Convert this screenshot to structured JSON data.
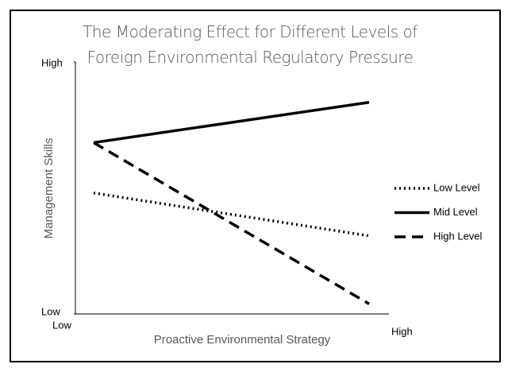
{
  "chart_data": {
    "type": "line",
    "title": "The Moderating Effect for Different Levels of Foreign Environmental Regulatory Pressure",
    "x_label": "Proactive Environmental Strategy",
    "y_label": "Management Skills",
    "categories": [
      "Low",
      "High"
    ],
    "ylim": [
      0,
      10
    ],
    "yticks": [
      {
        "value": 0,
        "label": "Low"
      },
      {
        "value": 10,
        "label": "High"
      }
    ],
    "grid": false,
    "legend": "right",
    "series": [
      {
        "name": "Low Level",
        "color": "#000000",
        "style": "dotted",
        "values": [
          4.8,
          3.1
        ]
      },
      {
        "name": "Mid Level",
        "color": "#000000",
        "style": "solid",
        "values": [
          6.8,
          8.4
        ]
      },
      {
        "name": "High Level",
        "color": "#000000",
        "style": "dashed",
        "values": [
          6.8,
          0.4
        ]
      }
    ]
  }
}
